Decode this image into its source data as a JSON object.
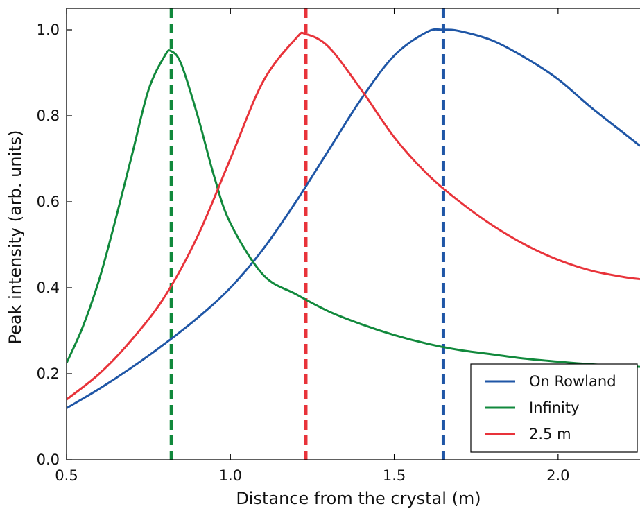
{
  "chart_data": {
    "type": "line",
    "title": "",
    "xlabel": "Distance from the crystal (m)",
    "ylabel": "Peak intensity (arb. units)",
    "xlim": [
      0.5,
      2.25
    ],
    "ylim": [
      0.0,
      1.05
    ],
    "xticks": [
      0.5,
      1.0,
      1.5,
      2.0
    ],
    "xtick_labels": [
      "0.5",
      "1.0",
      "1.5",
      "2.0"
    ],
    "yticks": [
      0.0,
      0.2,
      0.4,
      0.6,
      0.8,
      1.0
    ],
    "ytick_labels": [
      "0.0",
      "0.2",
      "0.4",
      "0.6",
      "0.8",
      "1.0"
    ],
    "grid": false,
    "legend_position": "bottom-right",
    "series": [
      {
        "name": "On Rowland",
        "color": "#1f56a6",
        "peak_x": 1.65,
        "x": [
          0.5,
          0.6,
          0.7,
          0.8,
          0.9,
          1.0,
          1.1,
          1.2,
          1.3,
          1.4,
          1.5,
          1.6,
          1.65,
          1.7,
          1.8,
          1.9,
          2.0,
          2.1,
          2.2,
          2.25
        ],
        "y": [
          0.12,
          0.165,
          0.215,
          0.27,
          0.33,
          0.4,
          0.49,
          0.6,
          0.72,
          0.84,
          0.94,
          0.995,
          1.0,
          0.997,
          0.975,
          0.935,
          0.885,
          0.82,
          0.76,
          0.73
        ]
      },
      {
        "name": "Infinity",
        "color": "#11893c",
        "peak_x": 0.82,
        "x": [
          0.5,
          0.55,
          0.6,
          0.65,
          0.7,
          0.75,
          0.8,
          0.82,
          0.85,
          0.9,
          0.95,
          1.0,
          1.1,
          1.2,
          1.3,
          1.4,
          1.5,
          1.6,
          1.7,
          1.8,
          1.9,
          2.0,
          2.1,
          2.2,
          2.25
        ],
        "y": [
          0.225,
          0.31,
          0.42,
          0.56,
          0.71,
          0.86,
          0.94,
          0.95,
          0.92,
          0.8,
          0.66,
          0.55,
          0.43,
          0.385,
          0.345,
          0.315,
          0.29,
          0.27,
          0.255,
          0.245,
          0.235,
          0.228,
          0.222,
          0.218,
          0.216
        ]
      },
      {
        "name": "2.5 m",
        "color": "#e8333a",
        "peak_x": 1.23,
        "x": [
          0.5,
          0.6,
          0.7,
          0.8,
          0.9,
          1.0,
          1.1,
          1.2,
          1.23,
          1.3,
          1.4,
          1.5,
          1.6,
          1.7,
          1.8,
          1.9,
          2.0,
          2.1,
          2.2,
          2.25
        ],
        "y": [
          0.14,
          0.2,
          0.28,
          0.38,
          0.52,
          0.7,
          0.88,
          0.98,
          0.99,
          0.96,
          0.86,
          0.75,
          0.665,
          0.6,
          0.545,
          0.5,
          0.465,
          0.44,
          0.425,
          0.42
        ]
      }
    ]
  }
}
